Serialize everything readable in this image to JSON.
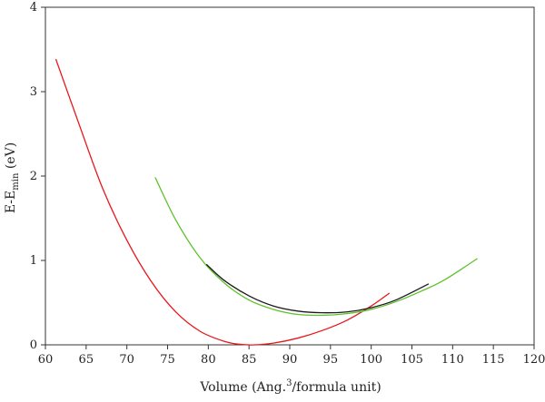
{
  "chart_data": {
    "type": "line",
    "title": "",
    "xlabel": {
      "main": "Volume (Ang.",
      "sup": "3",
      "rest": "/formula unit)"
    },
    "ylabel": {
      "main": "E-E",
      "sub": "min",
      "rest": " (eV)"
    },
    "xlim": [
      60,
      120
    ],
    "ylim": [
      0,
      4
    ],
    "xticks": [
      60,
      65,
      70,
      75,
      80,
      85,
      90,
      95,
      100,
      105,
      110,
      115,
      120
    ],
    "yticks": [
      0,
      1,
      2,
      3,
      4
    ],
    "grid": false,
    "legend": "none",
    "series": [
      {
        "color": "#e8161b",
        "x": [
          61.3,
          64,
          67,
          70,
          73,
          76,
          79,
          82,
          84,
          85.7,
          88,
          91,
          94,
          97,
          100,
          102.2
        ],
        "y": [
          3.38,
          2.65,
          1.86,
          1.24,
          0.75,
          0.39,
          0.16,
          0.04,
          0.005,
          0.0,
          0.02,
          0.08,
          0.17,
          0.29,
          0.46,
          0.61
        ]
      },
      {
        "color": "#5fc12c",
        "x": [
          73.5,
          76,
          79,
          82,
          85,
          88,
          91,
          94,
          97,
          100,
          103,
          106,
          109,
          113
        ],
        "y": [
          1.98,
          1.48,
          1.03,
          0.73,
          0.53,
          0.42,
          0.36,
          0.35,
          0.37,
          0.42,
          0.51,
          0.63,
          0.77,
          1.02
        ]
      },
      {
        "color": "#1a1a1a",
        "x": [
          79.8,
          82,
          85,
          88,
          91,
          94,
          97,
          100,
          103,
          107
        ],
        "y": [
          0.95,
          0.76,
          0.58,
          0.46,
          0.4,
          0.38,
          0.39,
          0.44,
          0.53,
          0.72
        ]
      }
    ]
  }
}
